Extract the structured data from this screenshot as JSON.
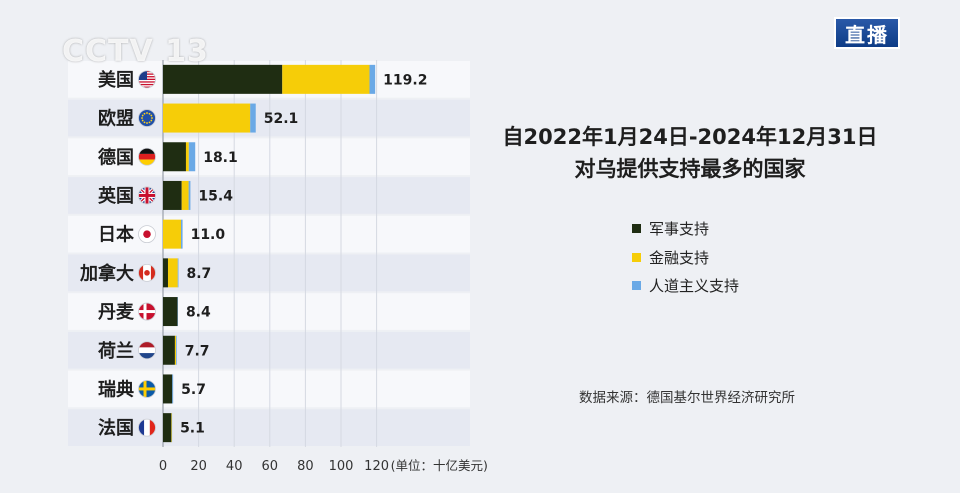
{
  "broadcast": {
    "logo": "CCTV 13",
    "live_label": "直播"
  },
  "heading": {
    "line1": "自2022年1月24日-2024年12月31日",
    "line2": "对乌提供支持最多的国家"
  },
  "legend": [
    {
      "label": "军事支持",
      "color": "#1f2d12"
    },
    {
      "label": "金融支持",
      "color": "#f6cd08"
    },
    {
      "label": "人道主义支持",
      "color": "#6aa9e6"
    }
  ],
  "source_text": "数据来源：德国基尔世界经济研究所",
  "chart_data": {
    "type": "bar",
    "orientation": "horizontal",
    "stacked": true,
    "categories": [
      "美国",
      "欧盟",
      "德国",
      "英国",
      "日本",
      "加拿大",
      "丹麦",
      "荷兰",
      "瑞典",
      "法国"
    ],
    "flag_icons": [
      "us-flag-icon",
      "eu-flag-icon",
      "germany-flag-icon",
      "uk-flag-icon",
      "japan-flag-icon",
      "canada-flag-icon",
      "denmark-flag-icon",
      "netherlands-flag-icon",
      "sweden-flag-icon",
      "france-flag-icon"
    ],
    "series": [
      {
        "name": "军事支持",
        "color": "#1f2d12",
        "values": [
          67.0,
          0.0,
          12.9,
          10.5,
          0.0,
          2.8,
          8.2,
          6.7,
          5.2,
          4.7
        ]
      },
      {
        "name": "金融支持",
        "color": "#f6cd08",
        "values": [
          49.0,
          49.0,
          1.6,
          3.9,
          10.1,
          5.5,
          0.0,
          0.6,
          0.0,
          0.3
        ]
      },
      {
        "name": "人道主义支持",
        "color": "#6aa9e6",
        "values": [
          3.2,
          3.1,
          3.6,
          1.0,
          0.9,
          0.4,
          0.2,
          0.4,
          0.5,
          0.1
        ]
      }
    ],
    "totals": [
      "119.2",
      "52.1",
      "18.1",
      "15.4",
      "11.0",
      "8.7",
      "8.4",
      "7.7",
      "5.7",
      "5.1"
    ],
    "x_ticks": [
      "0",
      "20",
      "40",
      "60",
      "80",
      "100",
      "120"
    ],
    "xlim": [
      0,
      145
    ],
    "unit_label": "(单位：十亿美元)",
    "grid": true
  }
}
